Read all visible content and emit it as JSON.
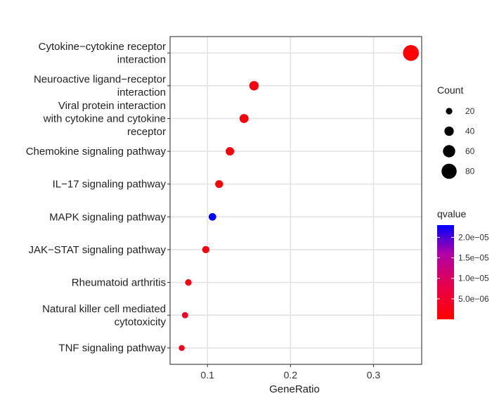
{
  "chart_data": {
    "type": "scatter",
    "xlabel": "GeneRatio",
    "ylabel": "",
    "title": "",
    "xlim": [
      0.055,
      0.358
    ],
    "x_ticks": [
      {
        "value": 0.1,
        "label": "0.1"
      },
      {
        "value": 0.2,
        "label": "0.2"
      },
      {
        "value": 0.3,
        "label": "0.3"
      }
    ],
    "grid": true,
    "categories": [
      {
        "lines": [
          "Cytokine−cytokine receptor",
          "interaction"
        ],
        "gene_ratio": 0.345,
        "count": 85,
        "qvalue": 5e-07
      },
      {
        "lines": [
          "Neuroactive ligand−receptor",
          "interaction"
        ],
        "gene_ratio": 0.156,
        "count": 40,
        "qvalue": 1.5e-06
      },
      {
        "lines": [
          "Viral protein interaction",
          "with cytokine and cytokine",
          "receptor"
        ],
        "gene_ratio": 0.144,
        "count": 37,
        "qvalue": 1e-06
      },
      {
        "lines": [
          "Chemokine signaling pathway"
        ],
        "gene_ratio": 0.127,
        "count": 33,
        "qvalue": 1.2e-06
      },
      {
        "lines": [
          "IL−17 signaling pathway"
        ],
        "gene_ratio": 0.114,
        "count": 29,
        "qvalue": 1e-06
      },
      {
        "lines": [
          "MAPK signaling pathway"
        ],
        "gene_ratio": 0.106,
        "count": 27,
        "qvalue": 2.3e-05
      },
      {
        "lines": [
          "JAK−STAT signaling pathway"
        ],
        "gene_ratio": 0.098,
        "count": 25,
        "qvalue": 1.5e-06
      },
      {
        "lines": [
          "Rheumatoid arthritis"
        ],
        "gene_ratio": 0.077,
        "count": 20,
        "qvalue": 1.5e-06
      },
      {
        "lines": [
          "Natural killer cell mediated",
          "cytotoxicity"
        ],
        "gene_ratio": 0.073,
        "count": 18,
        "qvalue": 4e-06
      },
      {
        "lines": [
          "TNF signaling pathway"
        ],
        "gene_ratio": 0.069,
        "count": 16,
        "qvalue": 3e-06
      }
    ],
    "size_legend": {
      "title": "Count",
      "entries": [
        {
          "value": 20,
          "label": "20"
        },
        {
          "value": 40,
          "label": "40"
        },
        {
          "value": 60,
          "label": "60"
        },
        {
          "value": 80,
          "label": "80"
        }
      ]
    },
    "color_legend": {
      "title": "qvalue",
      "range": [
        0,
        2.3e-05
      ],
      "low_color": "#ff0000",
      "high_color": "#0000ff",
      "ticks": [
        {
          "value": 5e-06,
          "label": "5.0e−06"
        },
        {
          "value": 1e-05,
          "label": "1.0e−05"
        },
        {
          "value": 1.5e-05,
          "label": "1.5e−05"
        },
        {
          "value": 2e-05,
          "label": "2.0e−05"
        }
      ]
    }
  }
}
